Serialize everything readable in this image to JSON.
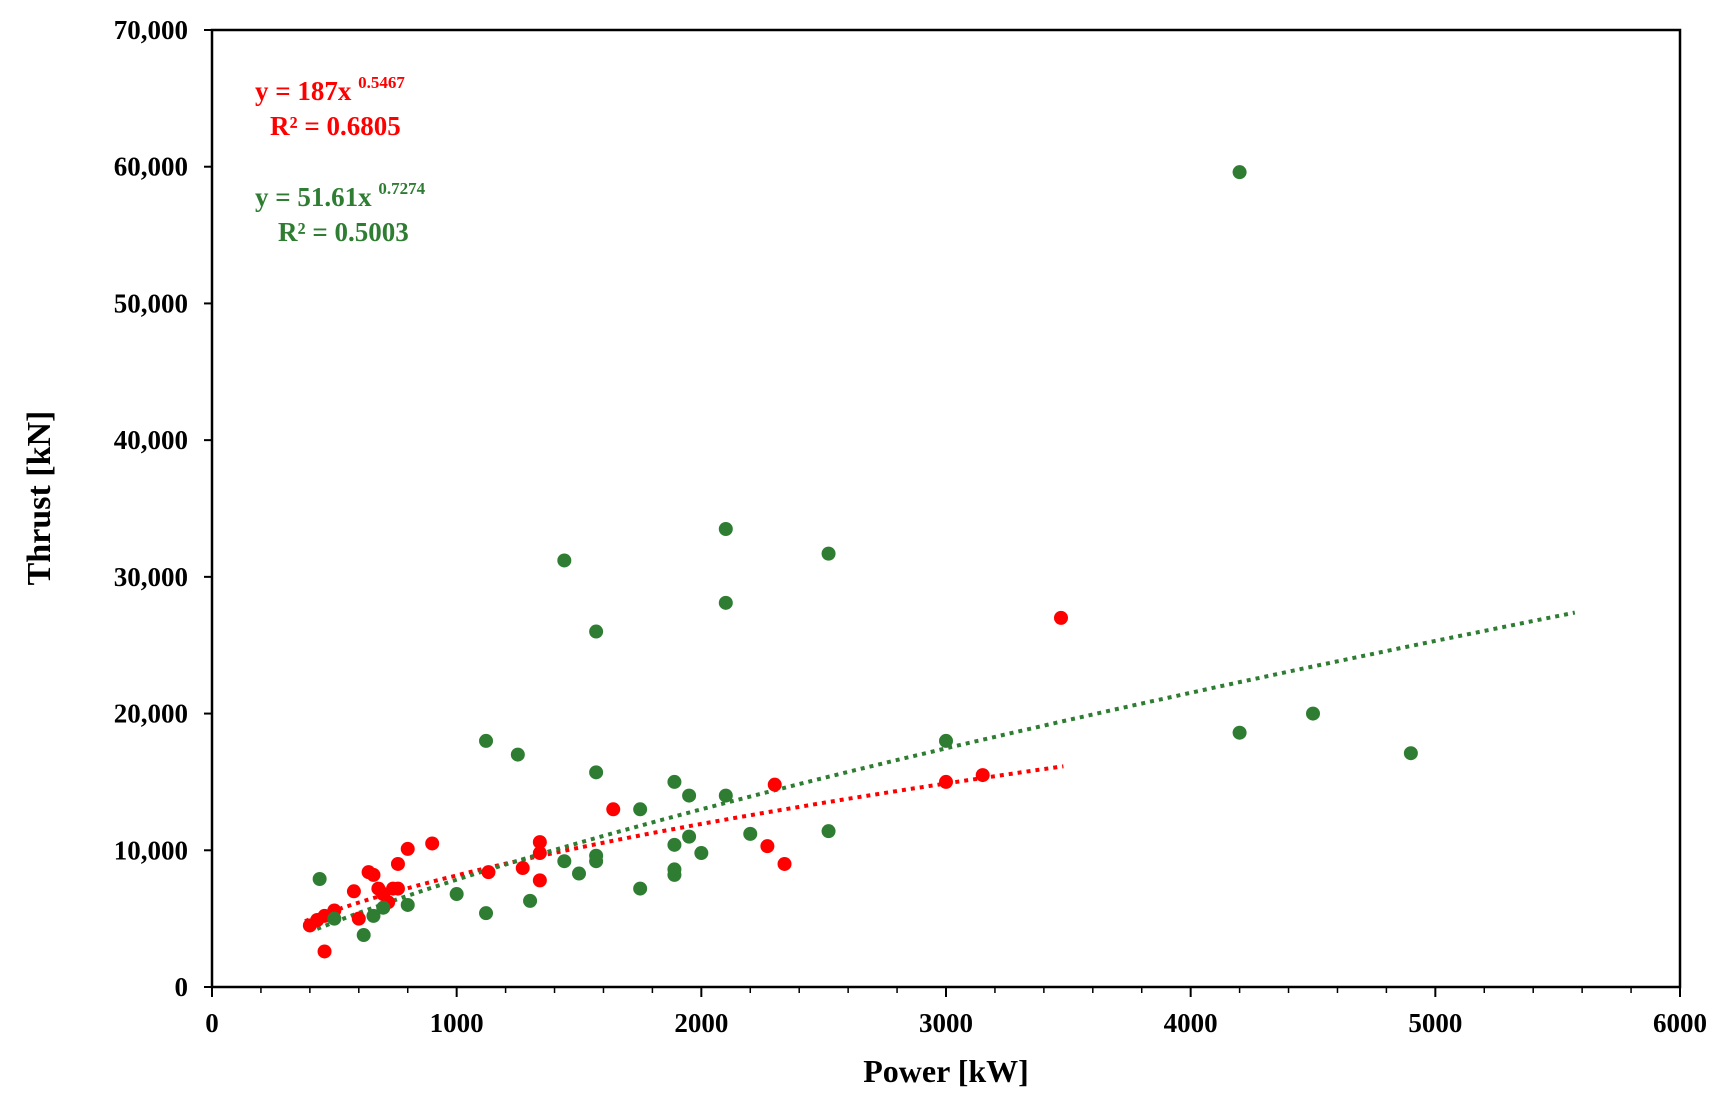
{
  "chart_data": {
    "type": "scatter",
    "title": "",
    "xlabel": "Power [kW]",
    "ylabel": "Thrust [kN]",
    "xlim": [
      0,
      6000
    ],
    "ylim": [
      0,
      70000
    ],
    "x_ticks": [
      0,
      1000,
      2000,
      3000,
      4000,
      5000,
      6000
    ],
    "x_tick_labels": [
      "0",
      "1000",
      "2000",
      "3000",
      "4000",
      "5000",
      "6000"
    ],
    "y_ticks": [
      0,
      10000,
      20000,
      30000,
      40000,
      50000,
      60000,
      70000
    ],
    "y_tick_labels": [
      "0",
      "10,000",
      "20,000",
      "30,000",
      "40,000",
      "50,000",
      "60,000",
      "70,000"
    ],
    "grid": false,
    "legend": "none",
    "series": [
      {
        "name": "red",
        "color": "#ff0000",
        "points": [
          [
            400,
            4500
          ],
          [
            430,
            4900
          ],
          [
            460,
            5200
          ],
          [
            460,
            2600
          ],
          [
            500,
            5600
          ],
          [
            580,
            7000
          ],
          [
            600,
            5000
          ],
          [
            640,
            8400
          ],
          [
            660,
            8200
          ],
          [
            680,
            7200
          ],
          [
            700,
            6800
          ],
          [
            720,
            6200
          ],
          [
            740,
            7200
          ],
          [
            760,
            7200
          ],
          [
            760,
            9000
          ],
          [
            800,
            10100
          ],
          [
            900,
            10500
          ],
          [
            1130,
            8400
          ],
          [
            1270,
            8700
          ],
          [
            1340,
            10600
          ],
          [
            1340,
            9800
          ],
          [
            1340,
            7800
          ],
          [
            1640,
            13000
          ],
          [
            2270,
            10300
          ],
          [
            2300,
            14800
          ],
          [
            2340,
            9000
          ],
          [
            3000,
            15000
          ],
          [
            3150,
            15500
          ],
          [
            3470,
            27000
          ]
        ],
        "trendline": {
          "equation": "y = 187x",
          "exponent": "0.5467",
          "r2_label": "R² = 0.6805",
          "a": 187,
          "b": 0.5467,
          "x_range": [
            380,
            3480
          ]
        }
      },
      {
        "name": "green",
        "color": "#2e7d32",
        "points": [
          [
            440,
            7900
          ],
          [
            500,
            5000
          ],
          [
            620,
            3800
          ],
          [
            660,
            5200
          ],
          [
            700,
            5800
          ],
          [
            800,
            6000
          ],
          [
            1000,
            6800
          ],
          [
            1120,
            18000
          ],
          [
            1120,
            5400
          ],
          [
            1250,
            17000
          ],
          [
            1300,
            6300
          ],
          [
            1440,
            31200
          ],
          [
            1440,
            9200
          ],
          [
            1500,
            8300
          ],
          [
            1570,
            26000
          ],
          [
            1570,
            15700
          ],
          [
            1570,
            9600
          ],
          [
            1570,
            9200
          ],
          [
            1750,
            13000
          ],
          [
            1750,
            7200
          ],
          [
            1890,
            15000
          ],
          [
            1890,
            10400
          ],
          [
            1890,
            8200
          ],
          [
            1890,
            8600
          ],
          [
            1950,
            14000
          ],
          [
            1950,
            11000
          ],
          [
            2000,
            9800
          ],
          [
            2100,
            33500
          ],
          [
            2100,
            28100
          ],
          [
            2100,
            14000
          ],
          [
            2200,
            11200
          ],
          [
            2520,
            31700
          ],
          [
            2520,
            11400
          ],
          [
            3000,
            18000
          ],
          [
            4200,
            59600
          ],
          [
            4200,
            18600
          ],
          [
            4500,
            20000
          ],
          [
            4900,
            17100
          ]
        ],
        "trendline": {
          "equation": "y = 51.61x",
          "exponent": "0.7274",
          "r2_label": "R² = 0.5003",
          "a": 51.61,
          "b": 0.7274,
          "x_range": [
            430,
            5570
          ]
        }
      }
    ]
  }
}
